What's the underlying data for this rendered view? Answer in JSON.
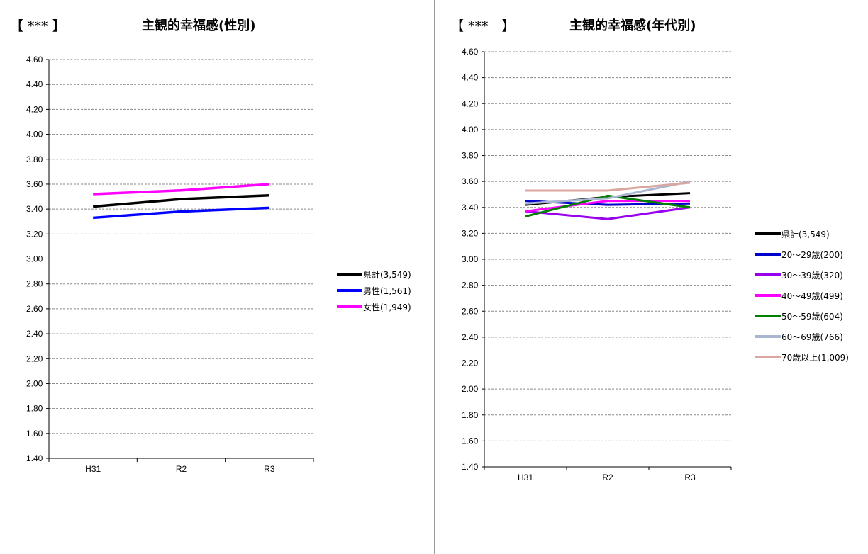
{
  "charts": [
    {
      "id": "left",
      "bracket": "【 *** 】",
      "title": "主観的幸福感(性別)"
    },
    {
      "id": "right",
      "bracket": "【 ***　】",
      "title": "主観的幸福感(年代別)"
    }
  ],
  "chart_data": [
    {
      "type": "line",
      "title": "主観的幸福感(性別)",
      "categories": [
        "H31",
        "R2",
        "R3"
      ],
      "ylim": [
        1.4,
        4.6
      ],
      "y_ticks": [
        "4.60",
        "4.40",
        "4.20",
        "4.00",
        "3.80",
        "3.60",
        "3.40",
        "3.20",
        "3.00",
        "2.80",
        "2.60",
        "2.40",
        "2.20",
        "2.00",
        "1.80",
        "1.60",
        "1.40"
      ],
      "grid": true,
      "legend": "right",
      "series": [
        {
          "name": "県計(3,549)",
          "color": "#000000",
          "values": [
            3.42,
            3.48,
            3.51
          ]
        },
        {
          "name": "男性(1,561)",
          "color": "#0000ff",
          "values": [
            3.33,
            3.38,
            3.41
          ]
        },
        {
          "name": "女性(1,949)",
          "color": "#ff00ff",
          "values": [
            3.52,
            3.55,
            3.6
          ]
        }
      ]
    },
    {
      "type": "line",
      "title": "主観的幸福感(年代別)",
      "categories": [
        "H31",
        "R2",
        "R3"
      ],
      "ylim": [
        1.4,
        4.6
      ],
      "y_ticks": [
        "4.60",
        "4.40",
        "4.20",
        "4.00",
        "3.80",
        "3.60",
        "3.40",
        "3.20",
        "3.00",
        "2.80",
        "2.60",
        "2.40",
        "2.20",
        "2.00",
        "1.80",
        "1.60",
        "1.40"
      ],
      "grid": true,
      "legend": "right",
      "series": [
        {
          "name": "県計(3,549)",
          "color": "#000000",
          "values": [
            3.42,
            3.48,
            3.51
          ]
        },
        {
          "name": "20～29歳(200)",
          "color": "#0000cc",
          "values": [
            3.45,
            3.42,
            3.43
          ]
        },
        {
          "name": "30～39歳(320)",
          "color": "#9900ee",
          "values": [
            3.37,
            3.31,
            3.4
          ]
        },
        {
          "name": "40～49歳(499)",
          "color": "#ff00ff",
          "values": [
            3.37,
            3.45,
            3.45
          ]
        },
        {
          "name": "50～59歳(604)",
          "color": "#008000",
          "values": [
            3.33,
            3.49,
            3.4
          ]
        },
        {
          "name": "60～69歳(766)",
          "color": "#a9b6d0",
          "values": [
            3.43,
            3.47,
            3.6
          ]
        },
        {
          "name": "70歳以上(1,009)",
          "color": "#d9a7a0",
          "values": [
            3.53,
            3.53,
            3.59
          ]
        }
      ]
    }
  ]
}
